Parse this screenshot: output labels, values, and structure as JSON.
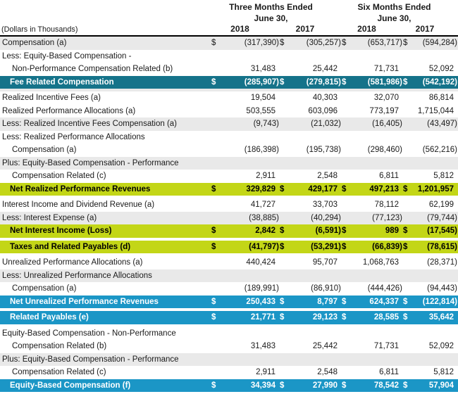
{
  "colors": {
    "teal": "#15738a",
    "yellow": "#c3d617",
    "blue": "#1b96c6",
    "stripe": "#e9e9e9",
    "ink": "#1a1a1a",
    "rule": "#000000"
  },
  "header": {
    "units_note": "(Dollars in Thousands)",
    "period_groups": [
      {
        "title": "Three Months Ended",
        "subtitle": "June 30,"
      },
      {
        "title": "Six Months Ended",
        "subtitle": "June 30,"
      }
    ],
    "year_columns": [
      "2018",
      "2017",
      "2018",
      "2017"
    ]
  },
  "table": {
    "currency_symbol": "$",
    "rows": [
      {
        "label": "Compensation (a)",
        "indent": 0,
        "style": "plain",
        "stripe": "gray",
        "dollar": true,
        "values": [
          "(317,390)",
          "(305,257)",
          "(653,717)",
          "(594,284)"
        ]
      },
      {
        "label": "Less: Equity-Based Compensation -",
        "indent": 0,
        "style": "plain",
        "stripe": "white",
        "values": null
      },
      {
        "label": "Non-Performance Compensation Related (b)",
        "indent": 1,
        "style": "plain",
        "stripe": "white",
        "dollar": false,
        "values": [
          "31,483",
          "25,442",
          "71,731",
          "52,092"
        ]
      },
      {
        "label": "Fee Related Compensation",
        "indent": 0,
        "style": "teal",
        "dollar": true,
        "values": [
          "(285,907)",
          "(279,815)",
          "(581,986)",
          "(542,192)"
        ]
      },
      {
        "style": "spacer",
        "stripe": "gray"
      },
      {
        "label": "Realized Incentive Fees (a)",
        "indent": 0,
        "style": "plain",
        "stripe": "white",
        "dollar": false,
        "values": [
          "19,504",
          "40,303",
          "32,070",
          "86,814"
        ]
      },
      {
        "label": "Realized Performance Allocations (a)",
        "indent": 0,
        "style": "plain",
        "stripe": "white",
        "dollar": false,
        "values": [
          "503,555",
          "603,096",
          "773,197",
          "1,715,044"
        ]
      },
      {
        "label": "Less: Realized Incentive Fees Compensation (a)",
        "indent": 0,
        "style": "plain",
        "stripe": "gray",
        "dollar": false,
        "values": [
          "(9,743)",
          "(21,032)",
          "(16,405)",
          "(43,497)"
        ]
      },
      {
        "label": "Less: Realized Performance Allocations",
        "indent": 0,
        "style": "plain",
        "stripe": "white",
        "values": null
      },
      {
        "label": "Compensation (a)",
        "indent": 1,
        "style": "plain",
        "stripe": "white",
        "dollar": false,
        "values": [
          "(186,398)",
          "(195,738)",
          "(298,460)",
          "(562,216)"
        ]
      },
      {
        "label": "Plus: Equity-Based Compensation - Performance",
        "indent": 0,
        "style": "plain",
        "stripe": "gray",
        "values": null
      },
      {
        "label": "Compensation Related (c)",
        "indent": 1,
        "style": "plain",
        "stripe": "white",
        "dollar": false,
        "values": [
          "2,911",
          "2,548",
          "6,811",
          "5,812"
        ]
      },
      {
        "label": "Net Realized Performance Revenues",
        "indent": 0,
        "style": "yellow",
        "dollar": true,
        "values": [
          "329,829",
          "429,177",
          "497,213",
          "1,201,957"
        ]
      },
      {
        "style": "spacer",
        "stripe": "white"
      },
      {
        "label": "Interest Income and Dividend Revenue (a)",
        "indent": 0,
        "style": "plain",
        "stripe": "white",
        "dollar": false,
        "values": [
          "41,727",
          "33,703",
          "78,112",
          "62,199"
        ]
      },
      {
        "label": "Less: Interest Expense (a)",
        "indent": 0,
        "style": "plain",
        "stripe": "gray",
        "dollar": false,
        "values": [
          "(38,885)",
          "(40,294)",
          "(77,123)",
          "(79,744)"
        ]
      },
      {
        "label": "Net Interest Income (Loss)",
        "indent": 0,
        "style": "yellow",
        "dollar": true,
        "values": [
          "2,842",
          "(6,591)",
          "989",
          "(17,545)"
        ]
      },
      {
        "style": "spacer",
        "stripe": "white"
      },
      {
        "label": "Taxes and Related Payables (d)",
        "indent": 0,
        "style": "yellow",
        "dollar": true,
        "values": [
          "(41,797)",
          "(53,291)",
          "(66,839)",
          "(78,615)"
        ]
      },
      {
        "style": "spacer",
        "stripe": "white"
      },
      {
        "label": "Unrealized Performance Allocations (a)",
        "indent": 0,
        "style": "plain",
        "stripe": "white",
        "dollar": false,
        "values": [
          "440,424",
          "95,707",
          "1,068,763",
          "(28,371)"
        ]
      },
      {
        "label": "Less: Unrealized Performance Allocations",
        "indent": 0,
        "style": "plain",
        "stripe": "gray",
        "values": null
      },
      {
        "label": "Compensation (a)",
        "indent": 1,
        "style": "plain",
        "stripe": "white",
        "dollar": false,
        "values": [
          "(189,991)",
          "(86,910)",
          "(444,426)",
          "(94,443)"
        ]
      },
      {
        "label": "Net Unrealized Performance Revenues",
        "indent": 0,
        "style": "blue",
        "dollar": true,
        "values": [
          "250,433",
          "8,797",
          "624,337",
          "(122,814)"
        ]
      },
      {
        "style": "spacer",
        "stripe": "white"
      },
      {
        "label": "Related Payables (e)",
        "indent": 0,
        "style": "blue",
        "dollar": true,
        "values": [
          "21,771",
          "29,123",
          "28,585",
          "35,642"
        ]
      },
      {
        "style": "spacer",
        "stripe": "white"
      },
      {
        "label": "Equity-Based Compensation - Non-Performance",
        "indent": 0,
        "style": "plain",
        "stripe": "white",
        "values": null
      },
      {
        "label": "Compensation Related (b)",
        "indent": 1,
        "style": "plain",
        "stripe": "white",
        "dollar": false,
        "values": [
          "31,483",
          "25,442",
          "71,731",
          "52,092"
        ]
      },
      {
        "label": "Plus: Equity-Based Compensation - Performance",
        "indent": 0,
        "style": "plain",
        "stripe": "gray",
        "values": null
      },
      {
        "label": "Compensation Related (c)",
        "indent": 1,
        "style": "plain",
        "stripe": "white",
        "dollar": false,
        "values": [
          "2,911",
          "2,548",
          "6,811",
          "5,812"
        ]
      },
      {
        "label": "Equity-Based Compensation (f)",
        "indent": 0,
        "style": "blue",
        "dollar": true,
        "values": [
          "34,394",
          "27,990",
          "78,542",
          "57,904"
        ]
      }
    ]
  }
}
